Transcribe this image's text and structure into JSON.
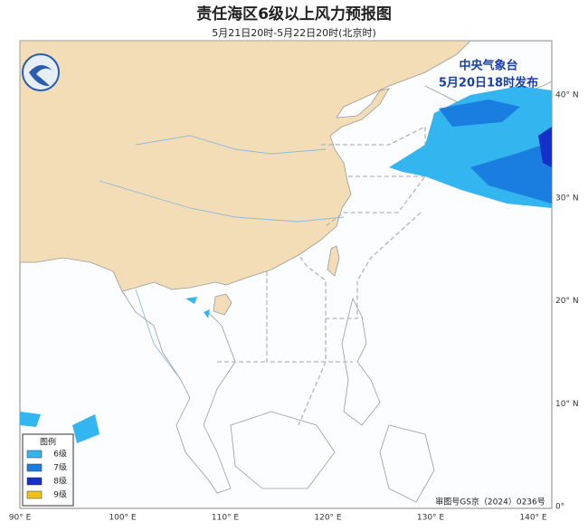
{
  "title": "责任海区6级以上风力预报图",
  "subtitle": "5月21日20时-5月22日20时(北京时)",
  "publisher": {
    "name": "中央气象台",
    "issued": "5月20日18时发布"
  },
  "longitude_labels": [
    "90° E",
    "100° E",
    "110° E",
    "120° E",
    "130° E",
    "140° E"
  ],
  "latitude_labels": [
    "40° N",
    "30° N",
    "20° N",
    "10° N",
    "0°"
  ],
  "legend": {
    "title": "图例",
    "items": [
      {
        "label": "6级",
        "color": "#33b5f0"
      },
      {
        "label": "7级",
        "color": "#1a7de0"
      },
      {
        "label": "8级",
        "color": "#1530c8"
      },
      {
        "label": "9级",
        "color": "#f2c21a"
      }
    ]
  },
  "approval_number": "审图号GS京（2024）0236号"
}
